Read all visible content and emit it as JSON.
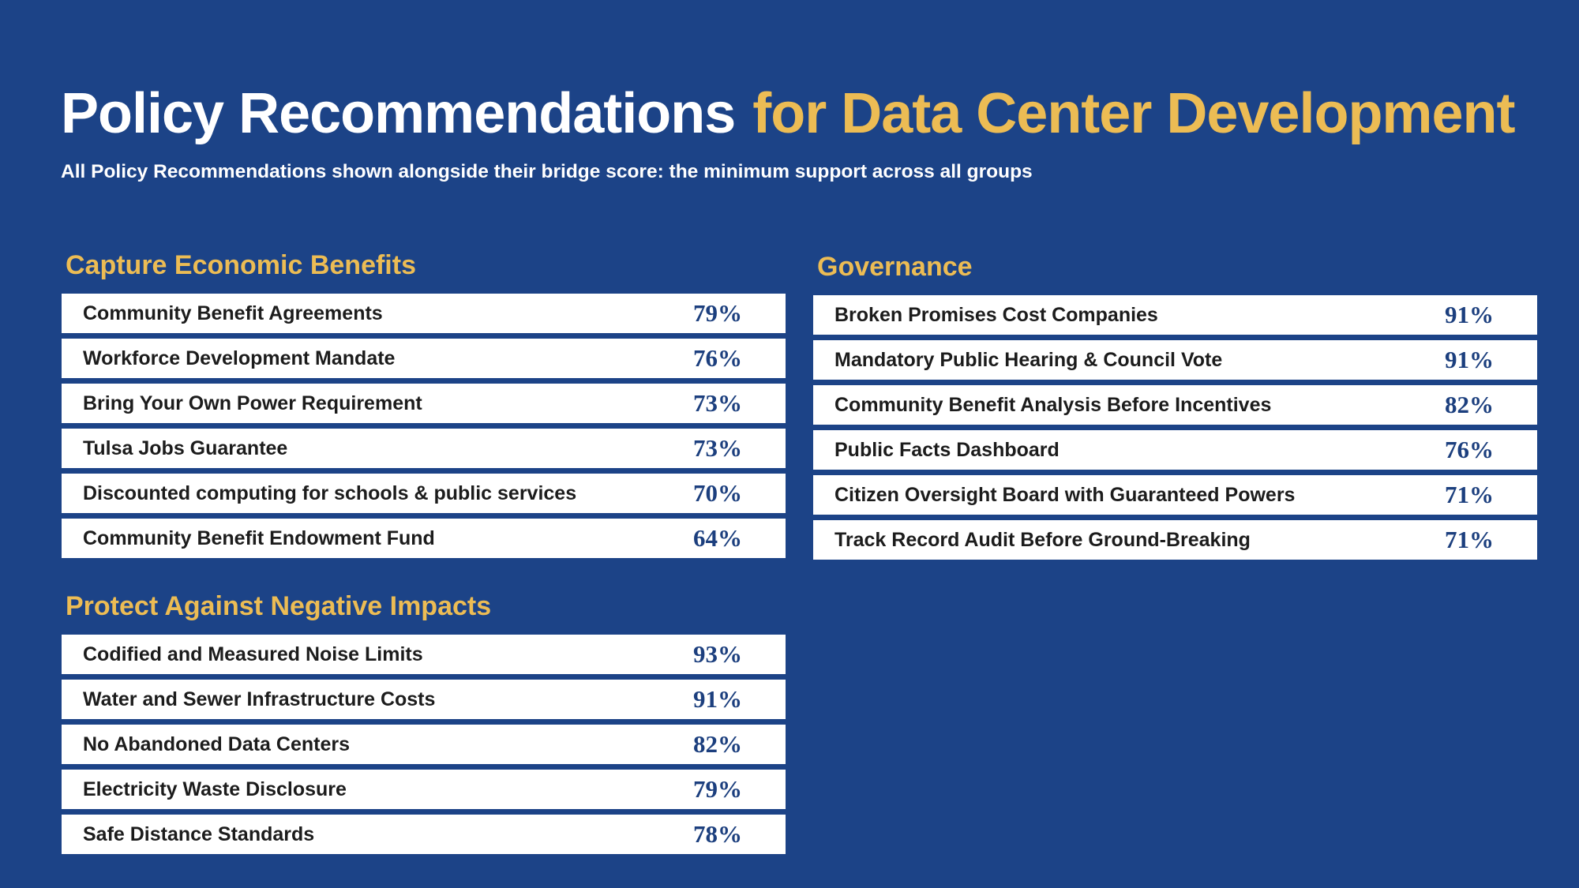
{
  "header": {
    "title_part1": "Policy Recommendations",
    "title_part2": "for Data Center Development",
    "subtitle": "All Policy Recommendations shown alongside their bridge score: the minimum support across all groups"
  },
  "colors": {
    "background": "#1c4387",
    "accent_gold": "#ecbc54",
    "row_background": "#ffffff",
    "value_text": "#1c3f7e"
  },
  "sections": [
    {
      "heading": "Capture Economic Benefits",
      "items": [
        {
          "label": "Community Benefit Agreements",
          "score": "79%"
        },
        {
          "label": "Workforce Development Mandate",
          "score": "76%"
        },
        {
          "label": "Bring Your Own Power Requirement",
          "score": "73%"
        },
        {
          "label": "Tulsa Jobs Guarantee",
          "score": "73%"
        },
        {
          "label": "Discounted computing for schools & public services",
          "score": "70%"
        },
        {
          "label": "Community Benefit Endowment Fund",
          "score": "64%"
        }
      ]
    },
    {
      "heading": "Protect Against Negative Impacts",
      "items": [
        {
          "label": "Codified and Measured Noise Limits",
          "score": "93%"
        },
        {
          "label": "Water and Sewer Infrastructure Costs",
          "score": "91%"
        },
        {
          "label": "No Abandoned Data Centers",
          "score": "82%"
        },
        {
          "label": "Electricity Waste Disclosure",
          "score": "79%"
        },
        {
          "label": "Safe Distance Standards",
          "score": "78%"
        }
      ]
    },
    {
      "heading": "Governance",
      "items": [
        {
          "label": "Broken Promises Cost Companies",
          "score": "91%"
        },
        {
          "label": "Mandatory Public Hearing & Council Vote",
          "score": "91%"
        },
        {
          "label": "Community Benefit Analysis Before Incentives",
          "score": "82%"
        },
        {
          "label": "Public Facts Dashboard",
          "score": "76%"
        },
        {
          "label": "Citizen Oversight Board with Guaranteed Powers",
          "score": "71%"
        },
        {
          "label": "Track Record Audit Before Ground-Breaking",
          "score": "71%"
        }
      ]
    }
  ]
}
